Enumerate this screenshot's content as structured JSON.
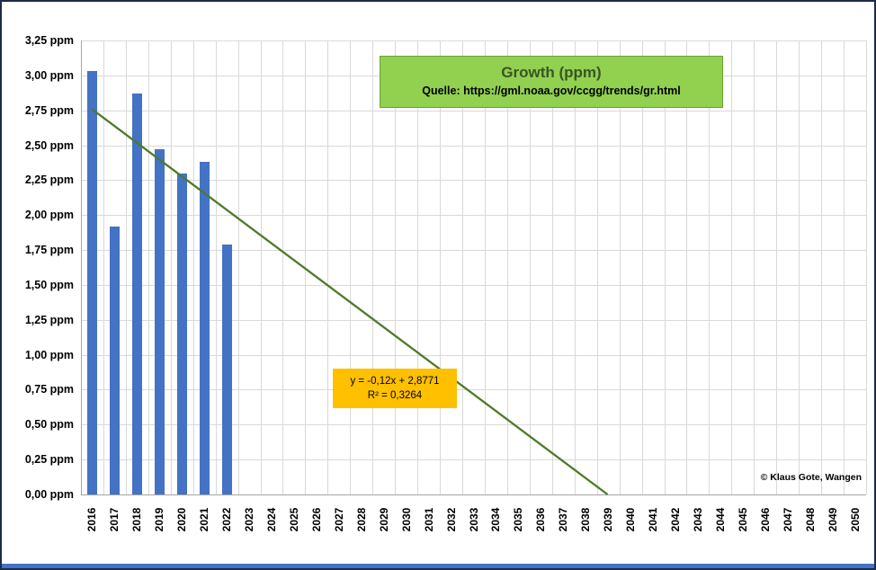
{
  "chart_data": {
    "type": "bar",
    "title": "Growth (ppm)",
    "source": "Quelle: https://gml.noaa.gov/ccgg/trends/gr.html",
    "xlabel": "",
    "ylabel": "",
    "ylim": [
      0,
      3.25
    ],
    "ytick_step": 0.25,
    "grid": true,
    "legend": "none",
    "categories": [
      "2016",
      "2017",
      "2018",
      "2019",
      "2020",
      "2021",
      "2022",
      "2023",
      "2024",
      "2025",
      "2026",
      "2027",
      "2028",
      "2029",
      "2030",
      "2031",
      "2032",
      "2033",
      "2034",
      "2035",
      "2036",
      "2037",
      "2038",
      "2039",
      "2040",
      "2041",
      "2042",
      "2043",
      "2044",
      "2045",
      "2046",
      "2047",
      "2048",
      "2049",
      "2050"
    ],
    "series": [
      {
        "name": "Growth (ppm)",
        "values": [
          3.03,
          1.92,
          2.87,
          2.47,
          2.3,
          2.38,
          1.79
        ]
      }
    ],
    "yticks": [
      {
        "value": 3.25,
        "label": "3,25 ppm"
      },
      {
        "value": 3.0,
        "label": "3,00 ppm"
      },
      {
        "value": 2.75,
        "label": "2,75 ppm"
      },
      {
        "value": 2.5,
        "label": "2,50 ppm"
      },
      {
        "value": 2.25,
        "label": "2,25 ppm"
      },
      {
        "value": 2.0,
        "label": "2,00 ppm"
      },
      {
        "value": 1.75,
        "label": "1,75 ppm"
      },
      {
        "value": 1.5,
        "label": "1,50 ppm"
      },
      {
        "value": 1.25,
        "label": "1,25 ppm"
      },
      {
        "value": 1.0,
        "label": "1,00 ppm"
      },
      {
        "value": 0.75,
        "label": "0,75 ppm"
      },
      {
        "value": 0.5,
        "label": "0,50 ppm"
      },
      {
        "value": 0.25,
        "label": "0,25 ppm"
      },
      {
        "value": 0.0,
        "label": "0,00 ppm"
      }
    ],
    "trendline": {
      "equation": "y = -0,12x + 2,8771",
      "r2": "R² = 0,3264",
      "slope": -0.12,
      "intercept": 2.8771
    }
  },
  "annotations": {
    "copyright": "© Klaus Gote, Wangen"
  },
  "colors": {
    "bar": "#4472c4",
    "trend": "#4e7a27",
    "title_bg": "#92d050",
    "title_border": "#6aa234",
    "eq_bg": "#ffc000",
    "grid": "#d9d9d9",
    "bottom_strip": "#4472c4"
  }
}
